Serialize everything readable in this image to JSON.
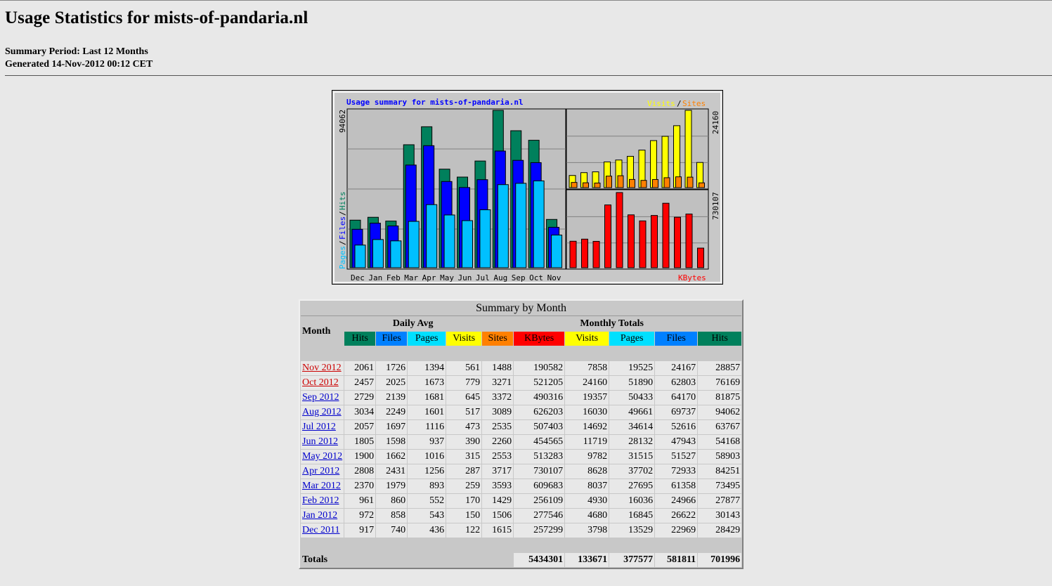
{
  "page": {
    "title": "Usage Statistics for mists-of-pandaria.nl",
    "summary_period": "Summary Period: Last 12 Months",
    "generated": "Generated 14-Nov-2012 00:12 CET"
  },
  "graph": {
    "title": "Usage summary for mists-of-pandaria.nl",
    "legend_visits": "Visits",
    "legend_sep": "/",
    "legend_sites": "Sites",
    "legend_kbytes": "KBytes",
    "left_axis_max": "94062",
    "left_axis_pages": "Pages",
    "left_axis_files": "Files",
    "left_axis_hits": "Hits",
    "right_top_max": "24160",
    "right_bottom_max": "730107",
    "colors": {
      "hits": "#00805c",
      "files": "#0000ff",
      "pages": "#00c0ff",
      "visits": "#ffff00",
      "sites": "#ff8000",
      "kbytes": "#ff0000",
      "title": "#0000ff"
    }
  },
  "chart_data": {
    "type": "bar",
    "categories": [
      "Dec",
      "Jan",
      "Feb",
      "Mar",
      "Apr",
      "May",
      "Jun",
      "Jul",
      "Aug",
      "Sep",
      "Oct",
      "Nov"
    ],
    "series": [
      {
        "name": "Hits",
        "values": [
          28429,
          30143,
          27877,
          73495,
          84251,
          58903,
          54168,
          63767,
          94062,
          81875,
          76169,
          28857
        ]
      },
      {
        "name": "Files",
        "values": [
          22969,
          26622,
          24966,
          61358,
          72933,
          51527,
          47943,
          52616,
          69737,
          64170,
          62803,
          24167
        ]
      },
      {
        "name": "Pages",
        "values": [
          13529,
          16845,
          16036,
          27695,
          37702,
          31515,
          28132,
          34614,
          49661,
          50433,
          51890,
          19525
        ]
      },
      {
        "name": "Visits",
        "values": [
          3798,
          4680,
          4930,
          8037,
          8628,
          9782,
          11719,
          14692,
          16030,
          19357,
          24160,
          7858
        ]
      },
      {
        "name": "Sites",
        "values": [
          1615,
          1506,
          1429,
          3593,
          3717,
          2553,
          2260,
          2535,
          3089,
          3372,
          3271,
          1488
        ]
      },
      {
        "name": "KBytes",
        "values": [
          257299,
          277546,
          256109,
          609683,
          730107,
          513283,
          454565,
          507403,
          626203,
          490316,
          521205,
          190582
        ]
      }
    ],
    "title": "Usage summary for mists-of-pandaria.nl",
    "ylim_hits": [
      0,
      94062
    ],
    "ylim_visits": [
      0,
      24160
    ],
    "ylim_kbytes": [
      0,
      730107
    ]
  },
  "table": {
    "title": "Summary by Month",
    "month_header": "Month",
    "daily_avg_header": "Daily Avg",
    "monthly_totals_header": "Monthly Totals",
    "daily_cols": [
      {
        "label": "Hits",
        "color": "#00805c"
      },
      {
        "label": "Files",
        "color": "#0080ff"
      },
      {
        "label": "Pages",
        "color": "#00e0ff"
      },
      {
        "label": "Visits",
        "color": "#ffff00"
      }
    ],
    "monthly_cols": [
      {
        "label": "Sites",
        "color": "#ff8000"
      },
      {
        "label": "KBytes",
        "color": "#ff0000"
      },
      {
        "label": "Visits",
        "color": "#ffff00"
      },
      {
        "label": "Pages",
        "color": "#00e0ff"
      },
      {
        "label": "Files",
        "color": "#0080ff"
      },
      {
        "label": "Hits",
        "color": "#00805c"
      }
    ],
    "rows": [
      {
        "month": "Nov 2012",
        "red": true,
        "d": [
          "2061",
          "1726",
          "1394",
          "561"
        ],
        "m": [
          "1488",
          "190582",
          "7858",
          "19525",
          "24167",
          "28857"
        ]
      },
      {
        "month": "Oct 2012",
        "red": true,
        "d": [
          "2457",
          "2025",
          "1673",
          "779"
        ],
        "m": [
          "3271",
          "521205",
          "24160",
          "51890",
          "62803",
          "76169"
        ]
      },
      {
        "month": "Sep 2012",
        "red": false,
        "d": [
          "2729",
          "2139",
          "1681",
          "645"
        ],
        "m": [
          "3372",
          "490316",
          "19357",
          "50433",
          "64170",
          "81875"
        ]
      },
      {
        "month": "Aug 2012",
        "red": false,
        "d": [
          "3034",
          "2249",
          "1601",
          "517"
        ],
        "m": [
          "3089",
          "626203",
          "16030",
          "49661",
          "69737",
          "94062"
        ]
      },
      {
        "month": "Jul 2012",
        "red": false,
        "d": [
          "2057",
          "1697",
          "1116",
          "473"
        ],
        "m": [
          "2535",
          "507403",
          "14692",
          "34614",
          "52616",
          "63767"
        ]
      },
      {
        "month": "Jun 2012",
        "red": false,
        "d": [
          "1805",
          "1598",
          "937",
          "390"
        ],
        "m": [
          "2260",
          "454565",
          "11719",
          "28132",
          "47943",
          "54168"
        ]
      },
      {
        "month": "May 2012",
        "red": false,
        "d": [
          "1900",
          "1662",
          "1016",
          "315"
        ],
        "m": [
          "2553",
          "513283",
          "9782",
          "31515",
          "51527",
          "58903"
        ]
      },
      {
        "month": "Apr 2012",
        "red": false,
        "d": [
          "2808",
          "2431",
          "1256",
          "287"
        ],
        "m": [
          "3717",
          "730107",
          "8628",
          "37702",
          "72933",
          "84251"
        ]
      },
      {
        "month": "Mar 2012",
        "red": false,
        "d": [
          "2370",
          "1979",
          "893",
          "259"
        ],
        "m": [
          "3593",
          "609683",
          "8037",
          "27695",
          "61358",
          "73495"
        ]
      },
      {
        "month": "Feb 2012",
        "red": false,
        "d": [
          "961",
          "860",
          "552",
          "170"
        ],
        "m": [
          "1429",
          "256109",
          "4930",
          "16036",
          "24966",
          "27877"
        ]
      },
      {
        "month": "Jan 2012",
        "red": false,
        "d": [
          "972",
          "858",
          "543",
          "150"
        ],
        "m": [
          "1506",
          "277546",
          "4680",
          "16845",
          "26622",
          "30143"
        ]
      },
      {
        "month": "Dec 2011",
        "red": false,
        "d": [
          "917",
          "740",
          "436",
          "122"
        ],
        "m": [
          "1615",
          "257299",
          "3798",
          "13529",
          "22969",
          "28429"
        ]
      }
    ],
    "totals_label": "Totals",
    "totals": [
      "5434301",
      "133671",
      "377577",
      "581811",
      "701996"
    ]
  }
}
